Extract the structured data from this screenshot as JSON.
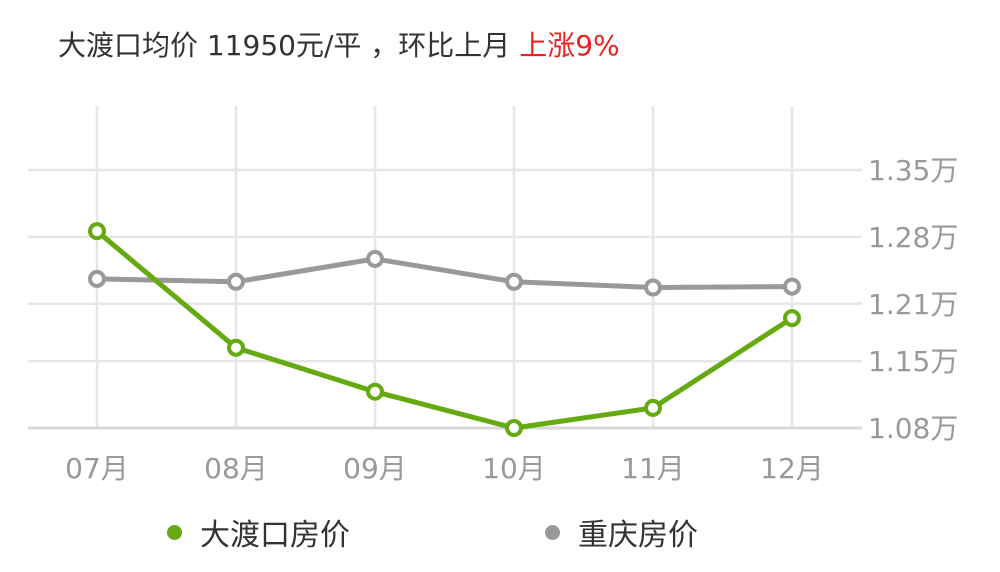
{
  "header": {
    "text": "大渡口均价 11950元/平 ，环比上月",
    "change": "上涨9%"
  },
  "colors": {
    "primary_series": "#66aa11",
    "secondary_series": "#999999",
    "grid": "#e6e6e6",
    "axis_label": "#999999",
    "rise": "#e8231f"
  },
  "chart_data": {
    "type": "line",
    "categories": [
      "07月",
      "08月",
      "09月",
      "10月",
      "11月",
      "12月"
    ],
    "y_ticks": [
      {
        "value": 1.08,
        "label": "1.08万"
      },
      {
        "value": 1.15,
        "label": "1.15万"
      },
      {
        "value": 1.21,
        "label": "1.21万"
      },
      {
        "value": 1.28,
        "label": "1.28万"
      },
      {
        "value": 1.35,
        "label": "1.35万"
      }
    ],
    "ylim": [
      1.08,
      1.35
    ],
    "grid": true,
    "legend_position": "bottom",
    "series": [
      {
        "name": "大渡口房价",
        "values": [
          1.286,
          1.164,
          1.118,
          1.08,
          1.101,
          1.195
        ]
      },
      {
        "name": "重庆房价",
        "values": [
          1.236,
          1.233,
          1.257,
          1.233,
          1.227,
          1.228
        ]
      }
    ]
  }
}
